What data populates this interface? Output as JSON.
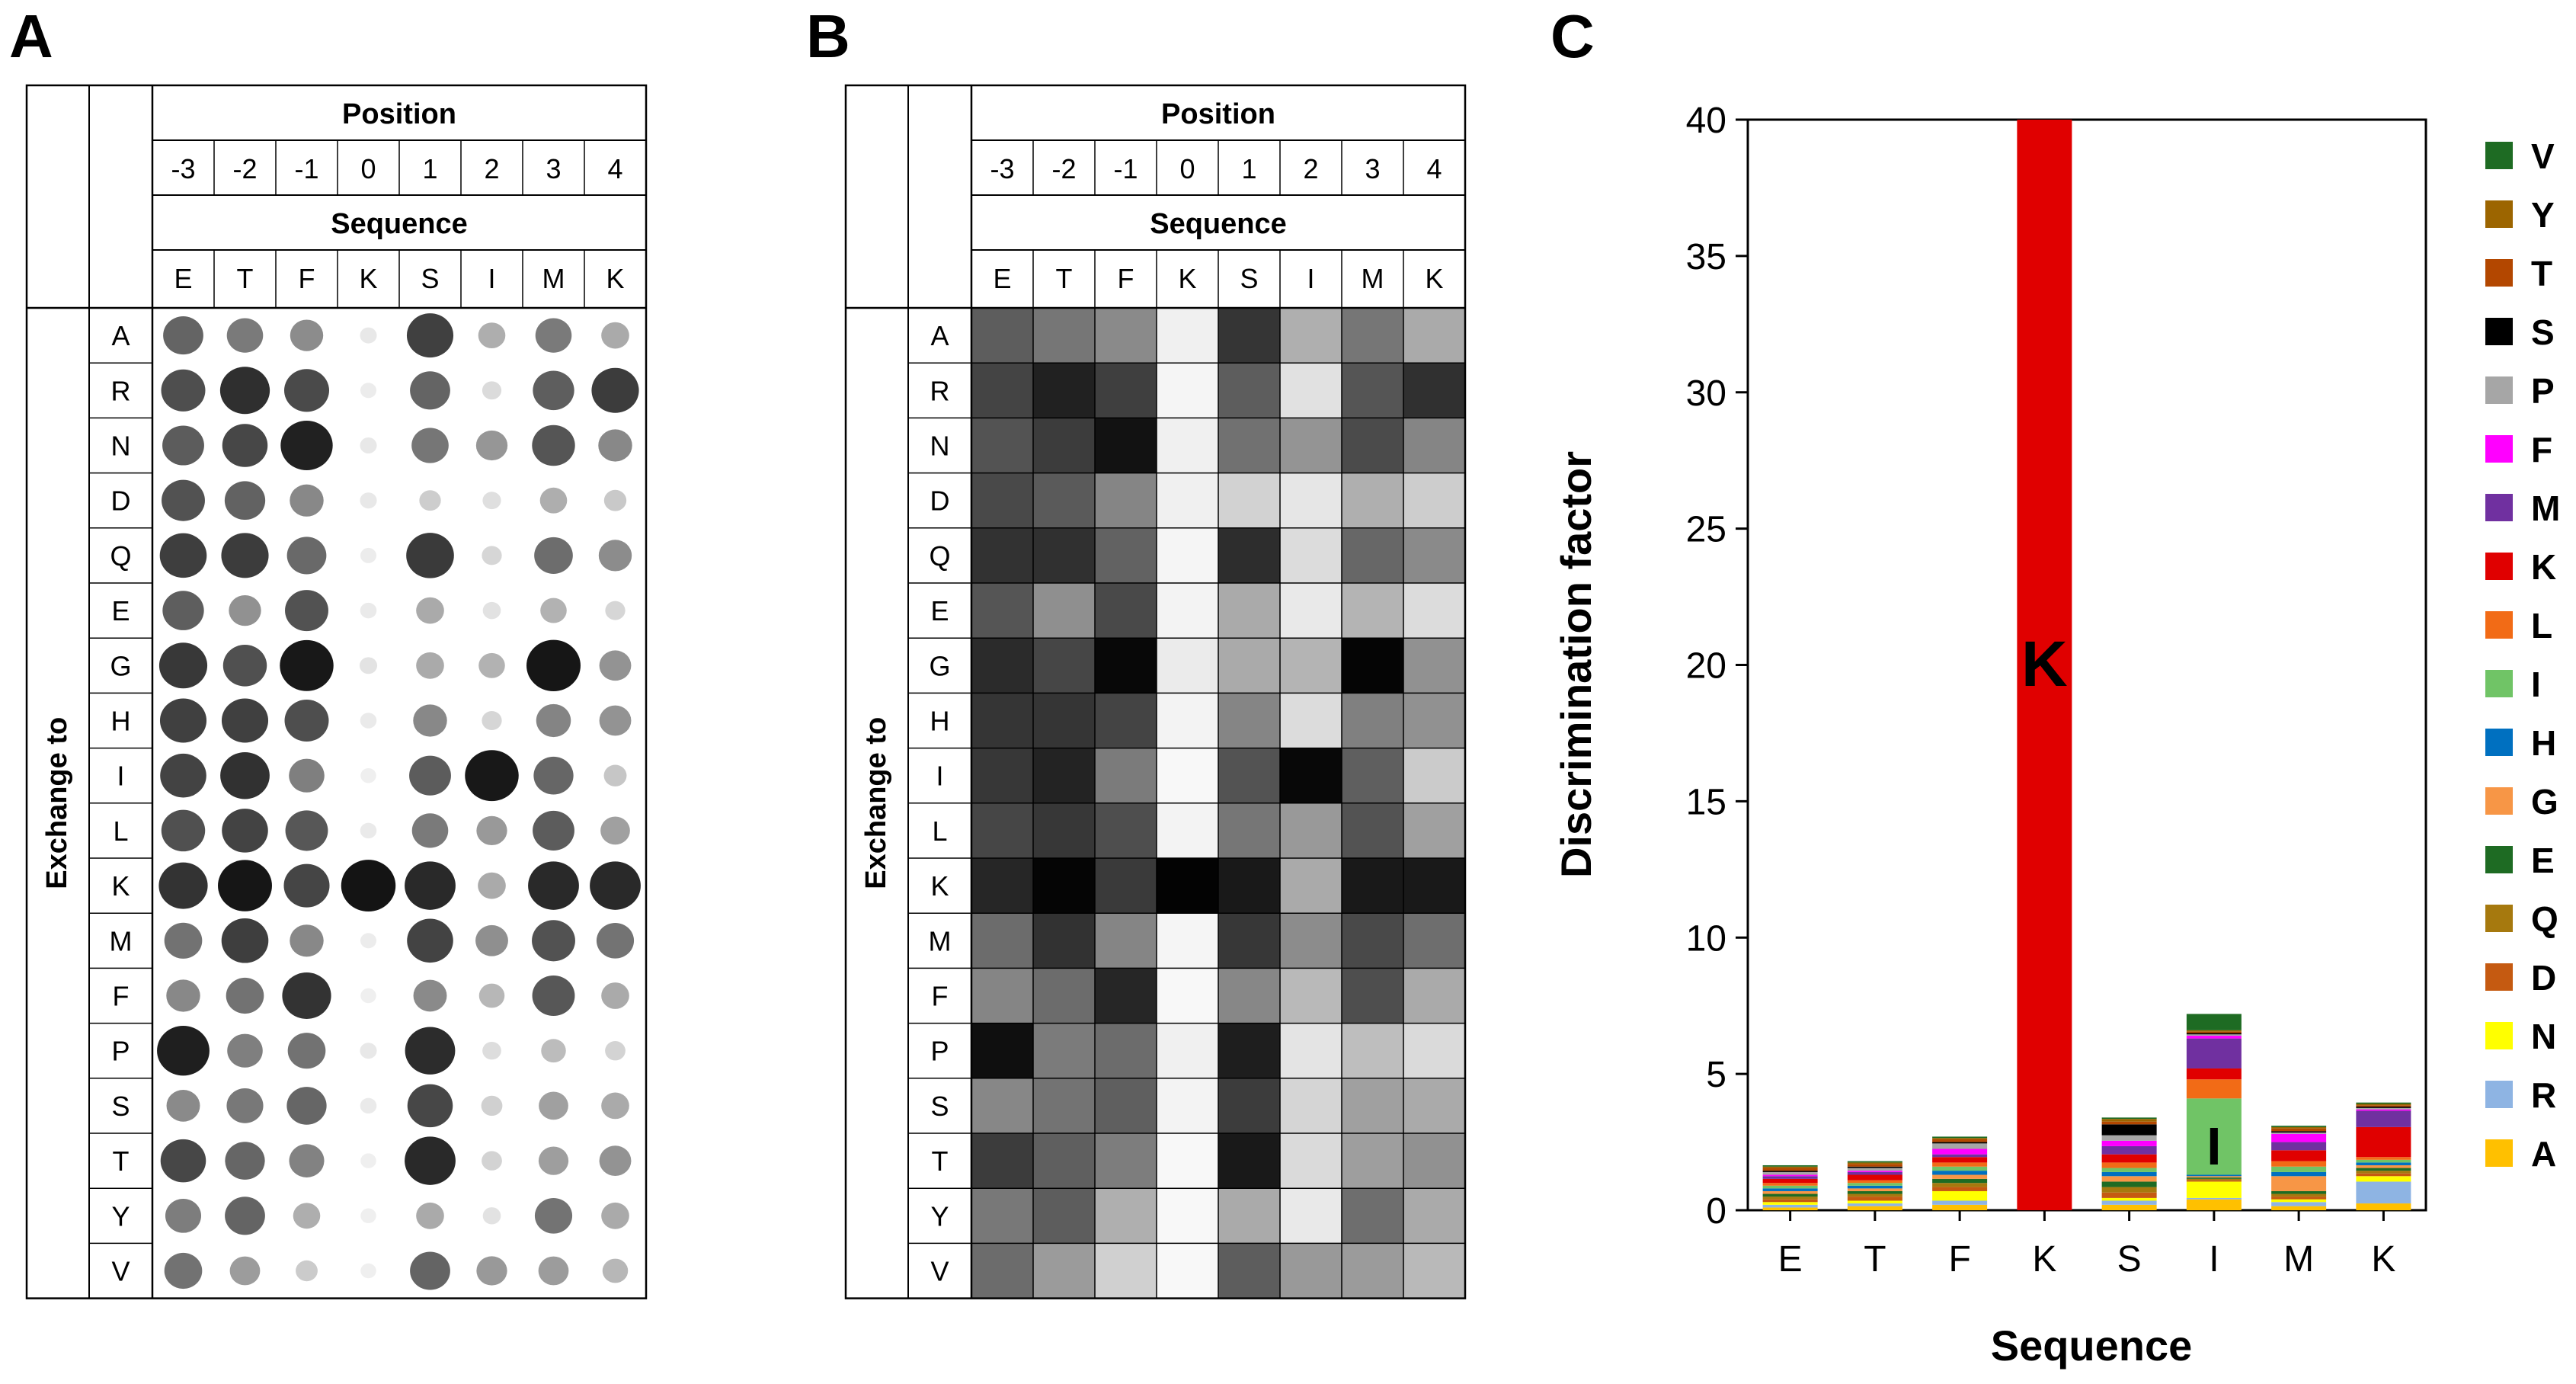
{
  "panels": {
    "a": {
      "letter": "A"
    },
    "b": {
      "letter": "B"
    },
    "c": {
      "letter": "C"
    }
  },
  "grid": {
    "position_header": "Position",
    "sequence_header": "Sequence",
    "exchange_label": "Exchange to",
    "positions": [
      "-3",
      "-2",
      "-1",
      "0",
      "1",
      "2",
      "3",
      "4"
    ],
    "sequence": [
      "E",
      "T",
      "F",
      "K",
      "S",
      "I",
      "M",
      "K"
    ],
    "rows": [
      "A",
      "R",
      "N",
      "D",
      "Q",
      "E",
      "G",
      "H",
      "I",
      "L",
      "K",
      "M",
      "F",
      "P",
      "S",
      "T",
      "Y",
      "V"
    ],
    "intensity": [
      [
        0.63,
        0.53,
        0.45,
        0.04,
        0.79,
        0.3,
        0.53,
        0.32
      ],
      [
        0.73,
        0.87,
        0.75,
        0.02,
        0.63,
        0.1,
        0.66,
        0.81
      ],
      [
        0.67,
        0.76,
        0.93,
        0.04,
        0.55,
        0.41,
        0.7,
        0.47
      ],
      [
        0.71,
        0.64,
        0.47,
        0.04,
        0.16,
        0.08,
        0.3,
        0.18
      ],
      [
        0.8,
        0.81,
        0.61,
        0.02,
        0.82,
        0.12,
        0.59,
        0.45
      ],
      [
        0.66,
        0.43,
        0.71,
        0.03,
        0.32,
        0.07,
        0.28,
        0.12
      ],
      [
        0.83,
        0.72,
        0.97,
        0.06,
        0.32,
        0.28,
        0.98,
        0.42
      ],
      [
        0.79,
        0.79,
        0.73,
        0.03,
        0.47,
        0.12,
        0.49,
        0.42
      ],
      [
        0.78,
        0.86,
        0.51,
        0.01,
        0.67,
        0.97,
        0.62,
        0.19
      ],
      [
        0.72,
        0.78,
        0.69,
        0.03,
        0.53,
        0.39,
        0.67,
        0.36
      ],
      [
        0.85,
        0.98,
        0.77,
        0.99,
        0.9,
        0.32,
        0.9,
        0.9
      ],
      [
        0.57,
        0.8,
        0.47,
        0.02,
        0.78,
        0.44,
        0.71,
        0.56
      ],
      [
        0.47,
        0.57,
        0.85,
        0.01,
        0.46,
        0.26,
        0.69,
        0.32
      ],
      [
        0.94,
        0.51,
        0.57,
        0.04,
        0.88,
        0.09,
        0.24,
        0.13
      ],
      [
        0.46,
        0.54,
        0.62,
        0.03,
        0.76,
        0.15,
        0.36,
        0.32
      ],
      [
        0.76,
        0.62,
        0.5,
        0.01,
        0.9,
        0.13,
        0.37,
        0.42
      ],
      [
        0.52,
        0.63,
        0.3,
        0.01,
        0.32,
        0.07,
        0.56,
        0.32
      ],
      [
        0.57,
        0.38,
        0.17,
        0.01,
        0.63,
        0.39,
        0.38,
        0.26
      ]
    ]
  },
  "chart_data": {
    "type": "bar",
    "stacked": true,
    "title": "",
    "xlabel": "Sequence",
    "ylabel": "Discrimination factor",
    "ylim": [
      0,
      40
    ],
    "yticks": [
      0,
      5,
      10,
      15,
      20,
      25,
      30,
      35,
      40
    ],
    "categories": [
      "E",
      "T",
      "F",
      "K",
      "S",
      "I",
      "M",
      "K"
    ],
    "bar_letters": [
      "",
      "",
      "",
      "K",
      "",
      "I",
      "",
      ""
    ],
    "legend_position": "right",
    "series": [
      {
        "name": "A",
        "color": "#FFC000",
        "values": [
          0.1,
          0.15,
          0.2,
          0,
          0.2,
          0.4,
          0.15,
          0.25
        ]
      },
      {
        "name": "R",
        "color": "#8EB4E3",
        "values": [
          0.1,
          0.1,
          0.15,
          0,
          0.15,
          0.05,
          0.15,
          0.8
        ]
      },
      {
        "name": "N",
        "color": "#FFFF00",
        "values": [
          0.1,
          0.1,
          0.35,
          0,
          0.1,
          0.6,
          0.1,
          0.2
        ]
      },
      {
        "name": "D",
        "color": "#C55A11",
        "values": [
          0.1,
          0.15,
          0.15,
          0,
          0.2,
          0.05,
          0.1,
          0.1
        ]
      },
      {
        "name": "Q",
        "color": "#A6790E",
        "values": [
          0.1,
          0.1,
          0.15,
          0,
          0.2,
          0.05,
          0.1,
          0.1
        ]
      },
      {
        "name": "E",
        "color": "#1E6B23",
        "values": [
          0.1,
          0.1,
          0.15,
          0,
          0.2,
          0.05,
          0.1,
          0.1
        ]
      },
      {
        "name": "G",
        "color": "#F79646",
        "values": [
          0.1,
          0.1,
          0.15,
          0,
          0.2,
          0.05,
          0.55,
          0.1
        ]
      },
      {
        "name": "H",
        "color": "#0070C0",
        "values": [
          0.1,
          0.1,
          0.15,
          0,
          0.15,
          0.05,
          0.15,
          0.1
        ]
      },
      {
        "name": "I",
        "color": "#70C466",
        "values": [
          0.1,
          0.1,
          0.15,
          0,
          0.15,
          2.8,
          0.2,
          0.1
        ]
      },
      {
        "name": "L",
        "color": "#F26B16",
        "values": [
          0.1,
          0.1,
          0.15,
          0,
          0.2,
          0.7,
          0.2,
          0.1
        ]
      },
      {
        "name": "K",
        "color": "#E00000",
        "values": [
          0.15,
          0.2,
          0.2,
          40,
          0.3,
          0.4,
          0.4,
          1.1
        ]
      },
      {
        "name": "M",
        "color": "#7030A0",
        "values": [
          0.1,
          0.1,
          0.1,
          0,
          0.3,
          1.1,
          0.3,
          0.6
        ]
      },
      {
        "name": "F",
        "color": "#FF00FF",
        "values": [
          0.05,
          0.05,
          0.2,
          0,
          0.2,
          0.1,
          0.3,
          0.05
        ]
      },
      {
        "name": "P",
        "color": "#A6A6A6",
        "values": [
          0.1,
          0.1,
          0.2,
          0,
          0.2,
          0.05,
          0.05,
          0.05
        ]
      },
      {
        "name": "S",
        "color": "#000000",
        "values": [
          0.05,
          0.05,
          0.05,
          0,
          0.4,
          0.05,
          0.05,
          0.05
        ]
      },
      {
        "name": "T",
        "color": "#B34700",
        "values": [
          0.1,
          0.1,
          0.1,
          0,
          0.1,
          0.05,
          0.1,
          0.05
        ]
      },
      {
        "name": "Y",
        "color": "#9C6500",
        "values": [
          0.05,
          0.05,
          0.05,
          0,
          0.1,
          0.05,
          0.05,
          0.05
        ]
      },
      {
        "name": "V",
        "color": "#1E6B23",
        "values": [
          0.05,
          0.05,
          0.05,
          0,
          0.05,
          0.6,
          0.05,
          0.05
        ]
      }
    ]
  }
}
